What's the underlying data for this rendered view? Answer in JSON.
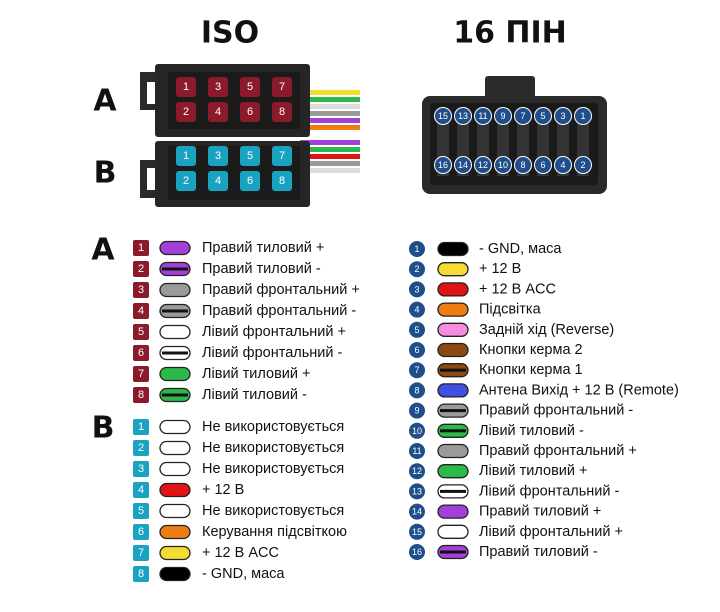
{
  "iso": {
    "title": "ISO",
    "group_a": "A",
    "group_b": "B",
    "connector_a_pins": [
      [
        "1",
        "3",
        "5",
        "7"
      ],
      [
        "2",
        "4",
        "6",
        "8"
      ]
    ],
    "connector_b_pins": [
      [
        "1",
        "3",
        "5",
        "7"
      ],
      [
        "2",
        "4",
        "6",
        "8"
      ]
    ],
    "legend_a": [
      {
        "pin": "1",
        "color": "#a43fd8",
        "stripe": null,
        "label": "Правий тиловий +"
      },
      {
        "pin": "2",
        "color": "#a43fd8",
        "stripe": "#111",
        "label": "Правий тиловий -"
      },
      {
        "pin": "3",
        "color": "#9a9a9a",
        "stripe": null,
        "label": "Правий фронтальний +"
      },
      {
        "pin": "4",
        "color": "#9a9a9a",
        "stripe": "#111",
        "label": "Правий фронтальний -"
      },
      {
        "pin": "5",
        "color": "#ffffff",
        "stripe": null,
        "label": "Лівий фронтальний +"
      },
      {
        "pin": "6",
        "color": "#ffffff",
        "stripe": "#111",
        "label": "Лівий фронтальний -"
      },
      {
        "pin": "7",
        "color": "#2db84a",
        "stripe": null,
        "label": "Лівий тиловий +"
      },
      {
        "pin": "8",
        "color": "#2db84a",
        "stripe": "#111",
        "label": "Лівий тиловий -"
      }
    ],
    "legend_b": [
      {
        "pin": "1",
        "color": "#ffffff",
        "stripe": null,
        "label": "Не використовується"
      },
      {
        "pin": "2",
        "color": "#ffffff",
        "stripe": null,
        "label": "Не використовується"
      },
      {
        "pin": "3",
        "color": "#ffffff",
        "stripe": null,
        "label": "Не використовується"
      },
      {
        "pin": "4",
        "color": "#e01414",
        "stripe": null,
        "label": "+ 12 В"
      },
      {
        "pin": "5",
        "color": "#ffffff",
        "stripe": null,
        "label": "Не використовується"
      },
      {
        "pin": "6",
        "color": "#f07d14",
        "stripe": null,
        "label": "Керування підсвіткою"
      },
      {
        "pin": "7",
        "color": "#f5dc32",
        "stripe": null,
        "label": "+ 12 В ACC"
      },
      {
        "pin": "8",
        "color": "#000000",
        "stripe": null,
        "label": "- GND, маса"
      }
    ]
  },
  "pin16": {
    "title": "16 ПІН",
    "connector_pins": [
      [
        "15",
        "13",
        "11",
        "9",
        "7",
        "5",
        "3",
        "1"
      ],
      [
        "16",
        "14",
        "12",
        "10",
        "8",
        "6",
        "4",
        "2"
      ]
    ],
    "legend": [
      {
        "pin": "1",
        "color": "#000000",
        "stripe": null,
        "label": "- GND, маса"
      },
      {
        "pin": "2",
        "color": "#f5dc32",
        "stripe": null,
        "label": "+ 12 В"
      },
      {
        "pin": "3",
        "color": "#e01414",
        "stripe": null,
        "label": "+ 12 В ACC"
      },
      {
        "pin": "4",
        "color": "#f07d14",
        "stripe": null,
        "label": "Підсвітка"
      },
      {
        "pin": "5",
        "color": "#f58ce0",
        "stripe": null,
        "label": "Задній хід (Reverse)"
      },
      {
        "pin": "6",
        "color": "#8a4a12",
        "stripe": null,
        "label": "Кнопки керма 2"
      },
      {
        "pin": "7",
        "color": "#8a4a12",
        "stripe": "#111",
        "label": "Кнопки керма 1"
      },
      {
        "pin": "8",
        "color": "#4050e0",
        "stripe": null,
        "label": "Антена Вихід + 12 В (Remote)"
      },
      {
        "pin": "9",
        "color": "#9a9a9a",
        "stripe": "#111",
        "label": "Правий фронтальний -"
      },
      {
        "pin": "10",
        "color": "#2db84a",
        "stripe": "#111",
        "label": "Лівий тиловий -"
      },
      {
        "pin": "11",
        "color": "#9a9a9a",
        "stripe": null,
        "label": "Правий фронтальний +"
      },
      {
        "pin": "12",
        "color": "#2db84a",
        "stripe": null,
        "label": "Лівий тиловий +"
      },
      {
        "pin": "13",
        "color": "#ffffff",
        "stripe": "#111",
        "label": "Лівий фронтальний -"
      },
      {
        "pin": "14",
        "color": "#a43fd8",
        "stripe": null,
        "label": "Правий тиловий +"
      },
      {
        "pin": "15",
        "color": "#ffffff",
        "stripe": null,
        "label": "Лівий фронтальний +"
      },
      {
        "pin": "16",
        "color": "#a43fd8",
        "stripe": "#111",
        "label": "Правий тиловий -"
      }
    ]
  }
}
